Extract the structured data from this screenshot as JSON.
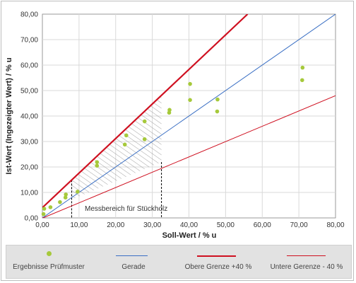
{
  "chart_data": {
    "type": "scatter",
    "xlabel": "Soll-Wert / % u",
    "ylabel": "Ist-Wert (Ingezeigter Wert) / % u",
    "xlim": [
      0,
      80
    ],
    "ylim": [
      0,
      80
    ],
    "xticks": [
      "0,00",
      "10,00",
      "20,00",
      "30,00",
      "40,00",
      "50,00",
      "60,00",
      "70,00",
      "80,00"
    ],
    "yticks": [
      "0,00",
      "10,00",
      "20,00",
      "30,00",
      "40,00",
      "50,00",
      "60,00",
      "70,00",
      "80,00"
    ],
    "grid": true,
    "legend_position": "bottom",
    "annotation": "Messbereich für Stückholz",
    "measure_range_x": [
      8,
      32.5
    ],
    "series": [
      {
        "name": "Ergebnisse Prüfmuster",
        "kind": "points",
        "color": "#a6c93b",
        "points": [
          [
            0.3,
            1.5
          ],
          [
            0.5,
            3.6
          ],
          [
            2.2,
            4.2
          ],
          [
            4.8,
            6.2
          ],
          [
            6.3,
            8.0
          ],
          [
            6.4,
            9.2
          ],
          [
            9.6,
            10.3
          ],
          [
            14.9,
            20.5
          ],
          [
            14.9,
            21.9
          ],
          [
            22.5,
            28.8
          ],
          [
            22.9,
            32.4
          ],
          [
            27.9,
            30.9
          ],
          [
            27.9,
            37.9
          ],
          [
            34.6,
            41.3
          ],
          [
            34.7,
            42.4
          ],
          [
            40.3,
            46.3
          ],
          [
            40.3,
            52.6
          ],
          [
            47.7,
            41.8
          ],
          [
            47.8,
            46.5
          ],
          [
            70.9,
            54.1
          ],
          [
            71.0,
            59.0
          ]
        ]
      },
      {
        "name": "Gerade",
        "kind": "line",
        "color": "#3a6fc4",
        "points": [
          [
            0,
            0
          ],
          [
            80,
            80
          ]
        ]
      },
      {
        "name": "Obere Grenze +40 %",
        "kind": "line",
        "color": "#cf1020",
        "points": [
          [
            -1.5,
            2
          ],
          [
            56,
            80
          ]
        ]
      },
      {
        "name": "Untere Gerenze - 40 %",
        "kind": "line",
        "color": "#cf1020",
        "points": [
          [
            -1.5,
            -1
          ],
          [
            80,
            48
          ]
        ]
      }
    ]
  }
}
